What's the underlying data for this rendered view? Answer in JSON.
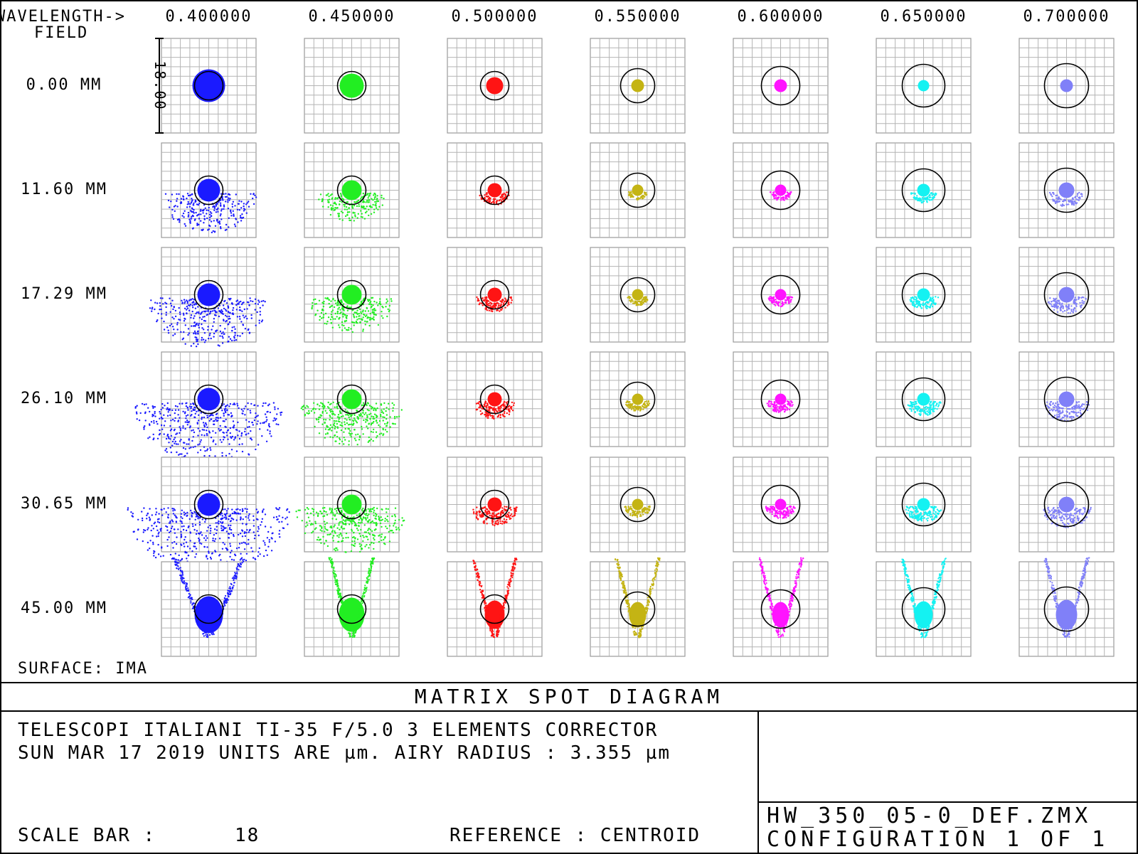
{
  "header": {
    "wavelength_label": "WAVELENGTH->",
    "field_label": "FIELD"
  },
  "wavelengths": [
    "0.400000",
    "0.450000",
    "0.500000",
    "0.550000",
    "0.600000",
    "0.650000",
    "0.700000"
  ],
  "fields": [
    "0.00 MM",
    "11.60 MM",
    "17.29 MM",
    "26.10 MM",
    "30.65 MM",
    "45.00 MM"
  ],
  "wavelength_colors": [
    "#1a1aff",
    "#22ee22",
    "#ff1414",
    "#c4b414",
    "#ff14ff",
    "#14f2f2",
    "#8080f8"
  ],
  "scale_label": "18.00",
  "surface_label": "SURFACE: IMA",
  "title": "MATRIX SPOT DIAGRAM",
  "info": {
    "line1": "TELESCOPI ITALIANI TI-35 F/5.0  3 ELEMENTS CORRECTOR",
    "line2": "SUN MAR 17 2019  UNITS ARE µm.  AIRY RADIUS : 3.355 µm"
  },
  "footer": {
    "scale_bar_label": "SCALE BAR  :",
    "scale_bar_value": "18",
    "reference": "REFERENCE  : CENTROID",
    "filename": "HW_350_05-0_DEF.ZMX",
    "configuration": "CONFIGURATION 1 OF 1"
  },
  "airy_radius_scale": 3.355
}
